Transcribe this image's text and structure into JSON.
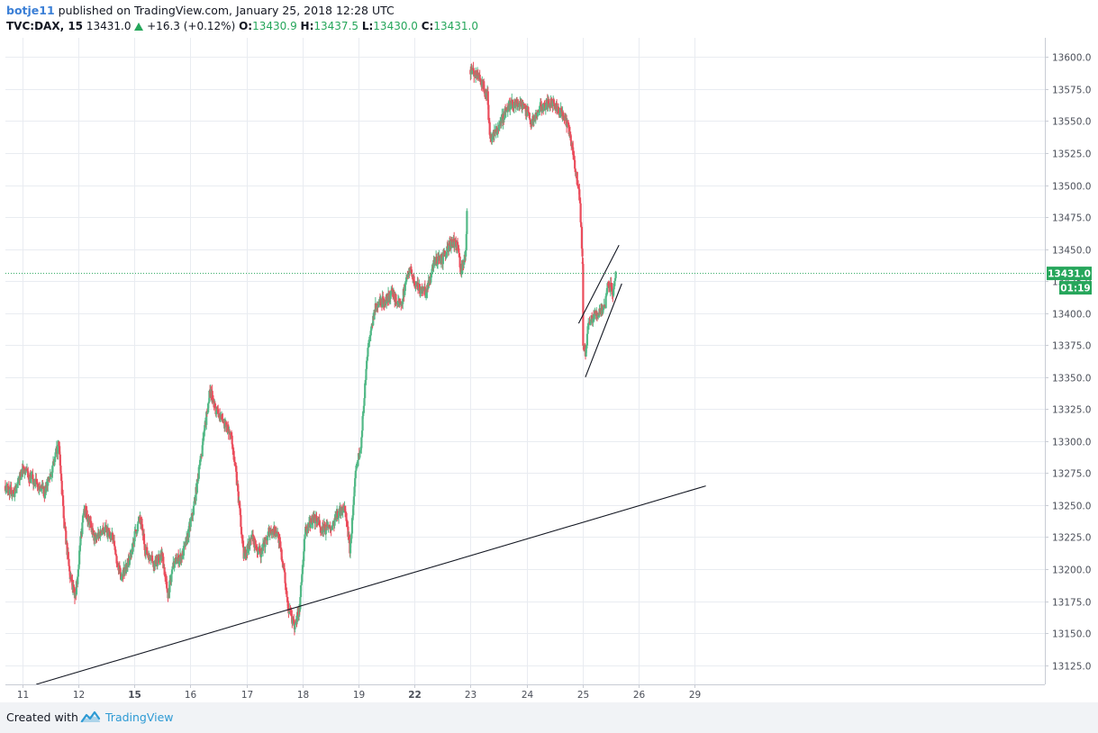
{
  "header": {
    "author": "botje11",
    "published_text": "published on TradingView.com, January 25, 2018 12:28 UTC",
    "symbol": "TVC:DAX, 15",
    "last": "13431.0",
    "change": "+16.3 (+0.12%)",
    "o_label": "O:",
    "o_value": "13430.9",
    "h_label": "H:",
    "h_value": "13437.5",
    "l_label": "L:",
    "l_value": "13430.0",
    "c_label": "C:",
    "c_value": "13431.0"
  },
  "footer": {
    "created_with": "Created with",
    "brand": "TradingView"
  },
  "price_label": "13431.0",
  "countdown_label": "01:19",
  "colors": {
    "up": "#53b987",
    "down": "#eb4d5c",
    "grid": "#e9ecf1",
    "price_line": "#26a65b",
    "author": "#3b7fd6",
    "brand": "#2d9ad4"
  },
  "chart_data": {
    "type": "candlestick",
    "y_axis_side": "right",
    "ylim": [
      13110,
      13615
    ],
    "y_ticks": [
      13125,
      13150,
      13175,
      13200,
      13225,
      13250,
      13275,
      13300,
      13325,
      13350,
      13375,
      13400,
      13425,
      13450,
      13475,
      13500,
      13525,
      13550,
      13575,
      13600
    ],
    "x_day_range": [
      10.7,
      29.25
    ],
    "x_ticks": [
      {
        "label": "11",
        "day": 11,
        "bold": false
      },
      {
        "label": "12",
        "day": 12,
        "bold": false
      },
      {
        "label": "15",
        "day": 13,
        "bold": true
      },
      {
        "label": "16",
        "day": 14,
        "bold": false
      },
      {
        "label": "17",
        "day": 15,
        "bold": false
      },
      {
        "label": "18",
        "day": 16,
        "bold": false
      },
      {
        "label": "19",
        "day": 17,
        "bold": false
      },
      {
        "label": "22",
        "day": 18,
        "bold": true
      },
      {
        "label": "23",
        "day": 19,
        "bold": false
      },
      {
        "label": "24",
        "day": 20,
        "bold": false
      },
      {
        "label": "25",
        "day": 21,
        "bold": false
      },
      {
        "label": "26",
        "day": 22,
        "bold": false
      },
      {
        "label": "29",
        "day": 23,
        "bold": false
      }
    ],
    "current_price": 13431.0,
    "price_path": [
      [
        10.7,
        13265
      ],
      [
        10.85,
        13258
      ],
      [
        11.0,
        13278
      ],
      [
        11.2,
        13268
      ],
      [
        11.4,
        13260
      ],
      [
        11.55,
        13280
      ],
      [
        11.65,
        13298
      ],
      [
        11.75,
        13235
      ],
      [
        11.85,
        13195
      ],
      [
        11.95,
        13178
      ],
      [
        12.1,
        13250
      ],
      [
        12.3,
        13222
      ],
      [
        12.45,
        13232
      ],
      [
        12.6,
        13225
      ],
      [
        12.75,
        13195
      ],
      [
        12.9,
        13205
      ],
      [
        13.0,
        13225
      ],
      [
        13.1,
        13240
      ],
      [
        13.2,
        13215
      ],
      [
        13.35,
        13205
      ],
      [
        13.5,
        13210
      ],
      [
        13.6,
        13180
      ],
      [
        13.7,
        13205
      ],
      [
        13.85,
        13210
      ],
      [
        13.95,
        13225
      ],
      [
        14.05,
        13245
      ],
      [
        14.2,
        13290
      ],
      [
        14.35,
        13340
      ],
      [
        14.45,
        13325
      ],
      [
        14.6,
        13315
      ],
      [
        14.75,
        13300
      ],
      [
        14.85,
        13260
      ],
      [
        14.95,
        13210
      ],
      [
        15.1,
        13225
      ],
      [
        15.25,
        13210
      ],
      [
        15.4,
        13230
      ],
      [
        15.55,
        13230
      ],
      [
        15.65,
        13205
      ],
      [
        15.75,
        13170
      ],
      [
        15.85,
        13155
      ],
      [
        15.95,
        13170
      ],
      [
        16.05,
        13230
      ],
      [
        16.2,
        13240
      ],
      [
        16.35,
        13232
      ],
      [
        16.5,
        13230
      ],
      [
        16.6,
        13240
      ],
      [
        16.75,
        13250
      ],
      [
        16.85,
        13215
      ],
      [
        16.95,
        13275
      ],
      [
        17.05,
        13300
      ],
      [
        17.15,
        13365
      ],
      [
        17.3,
        13405
      ],
      [
        17.45,
        13410
      ],
      [
        17.6,
        13415
      ],
      [
        17.75,
        13405
      ],
      [
        17.9,
        13435
      ],
      [
        18.05,
        13420
      ],
      [
        18.2,
        13415
      ],
      [
        18.35,
        13440
      ],
      [
        18.5,
        13442
      ],
      [
        18.65,
        13455
      ],
      [
        18.78,
        13455
      ],
      [
        18.82,
        13430
      ],
      [
        18.92,
        13450
      ],
      [
        19.0,
        13590
      ],
      [
        19.15,
        13585
      ],
      [
        19.3,
        13570
      ],
      [
        19.35,
        13535
      ],
      [
        19.5,
        13545
      ],
      [
        19.65,
        13560
      ],
      [
        19.8,
        13565
      ],
      [
        19.95,
        13560
      ],
      [
        20.1,
        13550
      ],
      [
        20.25,
        13560
      ],
      [
        20.4,
        13565
      ],
      [
        20.55,
        13560
      ],
      [
        20.65,
        13555
      ],
      [
        20.75,
        13545
      ],
      [
        20.85,
        13520
      ],
      [
        20.95,
        13490
      ],
      [
        21.0,
        13440
      ],
      [
        21.0,
        13380
      ],
      [
        21.05,
        13365
      ],
      [
        21.1,
        13390
      ],
      [
        21.2,
        13398
      ],
      [
        21.3,
        13400
      ],
      [
        21.4,
        13405
      ],
      [
        21.45,
        13425
      ],
      [
        21.55,
        13415
      ],
      [
        21.6,
        13431
      ]
    ],
    "trendlines": [
      {
        "name": "support",
        "from": [
          11.25,
          13110
        ],
        "to": [
          23.2,
          13265
        ]
      },
      {
        "name": "channel-upper",
        "from": [
          20.93,
          13392
        ],
        "to": [
          21.65,
          13453
        ]
      },
      {
        "name": "channel-lower",
        "from": [
          21.05,
          13350
        ],
        "to": [
          21.7,
          13423
        ]
      }
    ]
  }
}
